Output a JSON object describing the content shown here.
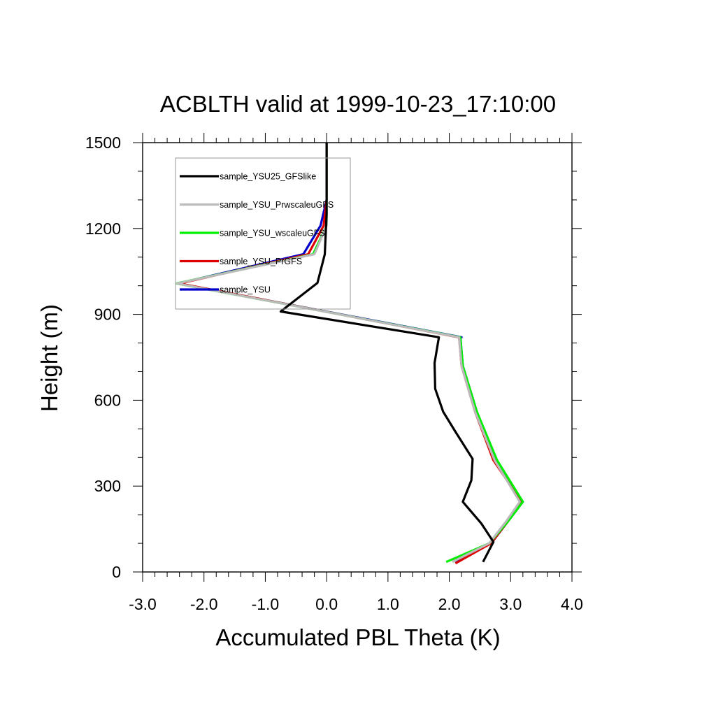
{
  "chart_data": {
    "type": "line",
    "title": "ACBLTH valid at 1999-10-23_17:10:00",
    "xlabel": "Accumulated PBL Theta (K)",
    "ylabel": "Height (m)",
    "xlim": [
      -3.0,
      4.0
    ],
    "ylim": [
      0,
      1500
    ],
    "xticks": [
      -3.0,
      -2.0,
      -1.0,
      0.0,
      1.0,
      2.0,
      3.0,
      4.0
    ],
    "xtick_labels": [
      "-3.0",
      "-2.0",
      "-1.0",
      "0.0",
      "1.0",
      "2.0",
      "3.0",
      "4.0"
    ],
    "yticks": [
      0,
      300,
      600,
      900,
      1200,
      1500
    ],
    "ytick_labels": [
      "0",
      "300",
      "600",
      "900",
      "1200",
      "1500"
    ],
    "grid": false,
    "legend_position": "top-left, inside plot, boxed",
    "series": [
      {
        "name": "sample_YSU",
        "color": "#0000cc",
        "x": [
          2.1,
          2.7,
          2.95,
          3.2,
          2.75,
          2.45,
          2.22,
          2.18,
          2.2,
          -2.42,
          -0.38,
          -0.1,
          0.0,
          0.0
        ],
        "y": [
          35,
          105,
          175,
          245,
          390,
          560,
          720,
          820,
          820,
          1008,
          1110,
          1210,
          1300,
          1500
        ]
      },
      {
        "name": "sample_YSU_PrGFS",
        "color": "#dd0000",
        "x": [
          2.1,
          2.68,
          2.95,
          3.18,
          2.72,
          2.42,
          2.2,
          2.16,
          2.15,
          -2.4,
          -0.3,
          -0.05,
          0.0,
          0.0
        ],
        "y": [
          30,
          100,
          175,
          245,
          390,
          560,
          720,
          820,
          820,
          1008,
          1110,
          1210,
          1300,
          1500
        ]
      },
      {
        "name": "sample_YSU_wscaleuGFS",
        "color": "#00ee00",
        "x": [
          1.95,
          2.65,
          2.95,
          3.2,
          2.78,
          2.45,
          2.22,
          2.18,
          2.18,
          -2.45,
          -0.22,
          0.0,
          0.0,
          0.0
        ],
        "y": [
          35,
          100,
          175,
          245,
          390,
          560,
          720,
          820,
          820,
          1008,
          1110,
          1210,
          1300,
          1500
        ]
      },
      {
        "name": "sample_YSU_PrwscaleuGFS",
        "color": "#bbbbbb",
        "x": [
          2.05,
          2.65,
          2.92,
          3.15,
          2.74,
          2.42,
          2.2,
          2.16,
          2.16,
          -2.44,
          -0.2,
          0.0,
          0.0,
          0.0
        ],
        "y": [
          35,
          100,
          175,
          245,
          390,
          560,
          720,
          820,
          820,
          1008,
          1110,
          1210,
          1300,
          1500
        ]
      },
      {
        "name": "sample_YSU25_GFSlike",
        "color": "#000000",
        "x": [
          2.55,
          2.72,
          2.52,
          2.22,
          2.36,
          2.38,
          2.1,
          1.9,
          1.77,
          1.76,
          1.83,
          -0.75,
          -0.15,
          -0.03,
          0.0,
          0.0
        ],
        "y": [
          35,
          105,
          170,
          245,
          320,
          395,
          490,
          560,
          640,
          730,
          820,
          910,
          1010,
          1110,
          1250,
          1500
        ]
      }
    ]
  }
}
